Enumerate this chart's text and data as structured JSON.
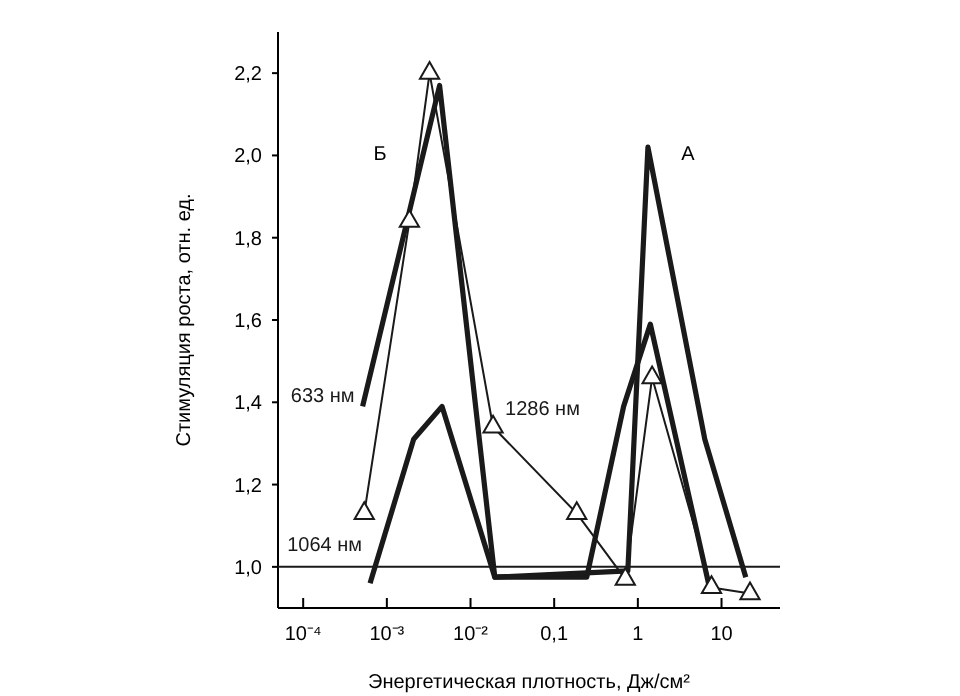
{
  "chart_data": {
    "type": "line",
    "xlabel": "Энергетическая плотность, Дж/см²",
    "ylabel": "Стимуляция роста, отн. ед.",
    "log": "x",
    "xlim": [
      5e-05,
      50
    ],
    "ylim": [
      0.9,
      2.3
    ],
    "xticks": [
      {
        "value": 0.0001,
        "label": "10⁻⁴"
      },
      {
        "value": 0.001,
        "label": "10⁻³"
      },
      {
        "value": 0.01,
        "label": "10⁻²"
      },
      {
        "value": 0.1,
        "label": "0,1"
      },
      {
        "value": 1,
        "label": "1"
      },
      {
        "value": 10,
        "label": "10"
      }
    ],
    "yticks": [
      {
        "value": 1,
        "label": "1,0"
      },
      {
        "value": 1.2,
        "label": "1,2"
      },
      {
        "value": 1.4,
        "label": "1,4"
      },
      {
        "value": 1.6,
        "label": "1,6"
      },
      {
        "value": 1.8,
        "label": "1,8"
      },
      {
        "value": 2,
        "label": "2,0"
      },
      {
        "value": 2.2,
        "label": "2,2"
      }
    ],
    "grid": false,
    "legend": false,
    "line_style": "solid",
    "series": [
      {
        "name": "633 нм",
        "color": "#1a1a1a",
        "marker": "none",
        "x": [
          0.000513,
          0.00427,
          0.0195,
          0.245,
          0.676,
          1.41,
          7.08
        ],
        "values": [
          1.39,
          2.17,
          0.975,
          0.975,
          1.39,
          1.59,
          0.955
        ]
      },
      {
        "name": "1064 нм",
        "color": "#1a1a1a",
        "marker": "none",
        "x": [
          0.00063,
          0.00209,
          0.00457,
          0.0195,
          0.759,
          1.32,
          6.31,
          19.5
        ],
        "values": [
          0.96,
          1.31,
          1.39,
          0.975,
          0.99,
          2.02,
          1.31,
          0.975
        ]
      },
      {
        "name": "1286 нм",
        "color": "#1a1a1a",
        "marker": "triangle",
        "x": [
          0.000537,
          0.00186,
          0.00324,
          0.0186,
          0.186,
          0.708,
          1.48,
          7.59,
          21.9
        ],
        "values": [
          1.13,
          1.84,
          2.2,
          1.34,
          1.13,
          0.97,
          1.46,
          0.95,
          0.935
        ]
      }
    ],
    "ref_lines": [
      {
        "axis": "y",
        "value": 1,
        "color": "#1a1a1a"
      }
    ],
    "annotations": [
      "Б",
      "А"
    ]
  }
}
